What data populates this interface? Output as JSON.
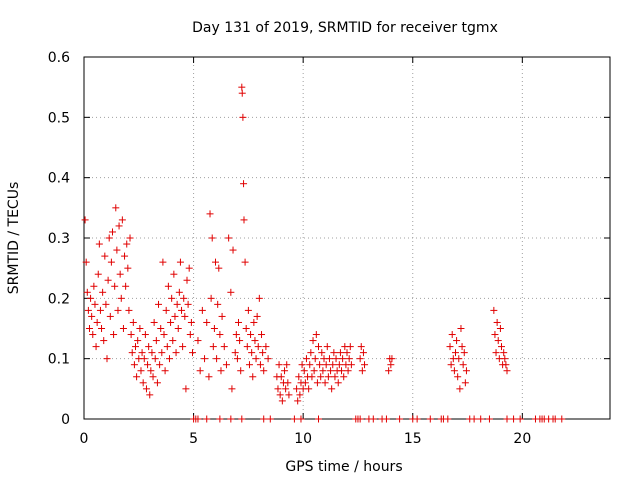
{
  "chart_data": {
    "type": "scatter",
    "title": "Day 131 of 2019, SRMTID for receiver tgmx",
    "xlabel": "GPS time / hours",
    "ylabel": "SRMTID / TECUs",
    "xlim": [
      0,
      24
    ],
    "ylim": [
      0,
      0.6
    ],
    "xticks": [
      0,
      5,
      10,
      15,
      20
    ],
    "yticks": [
      0,
      0.1,
      0.2,
      0.3,
      0.4,
      0.5,
      0.6
    ],
    "xtick_labels": [
      "0",
      "5",
      "10",
      "15",
      "20"
    ],
    "ytick_labels": [
      "0",
      "0.1",
      "0.2",
      "0.3",
      "0.4",
      "0.5",
      "0.6"
    ],
    "grid": true,
    "marker": "+",
    "marker_color": "#e00000",
    "series": [
      {
        "name": "SRMTID",
        "points": [
          [
            0.05,
            0.33
          ],
          [
            0.1,
            0.26
          ],
          [
            0.15,
            0.21
          ],
          [
            0.2,
            0.18
          ],
          [
            0.25,
            0.15
          ],
          [
            0.3,
            0.2
          ],
          [
            0.35,
            0.17
          ],
          [
            0.4,
            0.14
          ],
          [
            0.45,
            0.22
          ],
          [
            0.5,
            0.19
          ],
          [
            0.55,
            0.12
          ],
          [
            0.6,
            0.16
          ],
          [
            0.65,
            0.24
          ],
          [
            0.7,
            0.29
          ],
          [
            0.75,
            0.18
          ],
          [
            0.8,
            0.15
          ],
          [
            0.85,
            0.21
          ],
          [
            0.9,
            0.13
          ],
          [
            0.95,
            0.27
          ],
          [
            1.0,
            0.19
          ],
          [
            1.05,
            0.1
          ],
          [
            1.1,
            0.23
          ],
          [
            1.15,
            0.3
          ],
          [
            1.2,
            0.17
          ],
          [
            1.25,
            0.26
          ],
          [
            1.3,
            0.31
          ],
          [
            1.35,
            0.14
          ],
          [
            1.4,
            0.22
          ],
          [
            1.45,
            0.35
          ],
          [
            1.5,
            0.28
          ],
          [
            1.55,
            0.18
          ],
          [
            1.6,
            0.32
          ],
          [
            1.65,
            0.24
          ],
          [
            1.7,
            0.2
          ],
          [
            1.75,
            0.33
          ],
          [
            1.8,
            0.15
          ],
          [
            1.85,
            0.27
          ],
          [
            1.9,
            0.22
          ],
          [
            1.95,
            0.29
          ],
          [
            2.0,
            0.25
          ],
          [
            2.05,
            0.18
          ],
          [
            2.1,
            0.3
          ],
          [
            2.15,
            0.14
          ],
          [
            2.2,
            0.11
          ],
          [
            2.25,
            0.16
          ],
          [
            2.3,
            0.09
          ],
          [
            2.35,
            0.12
          ],
          [
            2.4,
            0.07
          ],
          [
            2.45,
            0.13
          ],
          [
            2.5,
            0.1
          ],
          [
            2.55,
            0.15
          ],
          [
            2.6,
            0.08
          ],
          [
            2.65,
            0.11
          ],
          [
            2.7,
            0.06
          ],
          [
            2.75,
            0.1
          ],
          [
            2.8,
            0.14
          ],
          [
            2.85,
            0.05
          ],
          [
            2.9,
            0.09
          ],
          [
            2.95,
            0.12
          ],
          [
            3.0,
            0.04
          ],
          [
            3.05,
            0.08
          ],
          [
            3.1,
            0.11
          ],
          [
            3.15,
            0.07
          ],
          [
            3.2,
            0.16
          ],
          [
            3.25,
            0.1
          ],
          [
            3.3,
            0.13
          ],
          [
            3.35,
            0.06
          ],
          [
            3.4,
            0.19
          ],
          [
            3.45,
            0.09
          ],
          [
            3.5,
            0.15
          ],
          [
            3.55,
            0.11
          ],
          [
            3.6,
            0.26
          ],
          [
            3.65,
            0.14
          ],
          [
            3.7,
            0.08
          ],
          [
            3.75,
            0.18
          ],
          [
            3.8,
            0.12
          ],
          [
            3.85,
            0.22
          ],
          [
            3.9,
            0.1
          ],
          [
            3.95,
            0.16
          ],
          [
            4.0,
            0.2
          ],
          [
            4.05,
            0.13
          ],
          [
            4.1,
            0.24
          ],
          [
            4.15,
            0.17
          ],
          [
            4.2,
            0.11
          ],
          [
            4.25,
            0.19
          ],
          [
            4.3,
            0.15
          ],
          [
            4.35,
            0.21
          ],
          [
            4.4,
            0.26
          ],
          [
            4.45,
            0.18
          ],
          [
            4.5,
            0.12
          ],
          [
            4.55,
            0.2
          ],
          [
            4.6,
            0.17
          ],
          [
            4.65,
            0.05
          ],
          [
            4.7,
            0.23
          ],
          [
            4.75,
            0.19
          ],
          [
            4.8,
            0.25
          ],
          [
            4.85,
            0.14
          ],
          [
            4.9,
            0.16
          ],
          [
            4.95,
            0.11
          ],
          [
            5.2,
            0.13
          ],
          [
            5.3,
            0.08
          ],
          [
            5.4,
            0.18
          ],
          [
            5.5,
            0.1
          ],
          [
            5.6,
            0.16
          ],
          [
            5.7,
            0.07
          ],
          [
            5.75,
            0.34
          ],
          [
            5.8,
            0.2
          ],
          [
            5.85,
            0.3
          ],
          [
            5.9,
            0.12
          ],
          [
            5.95,
            0.15
          ],
          [
            6.0,
            0.26
          ],
          [
            6.05,
            0.1
          ],
          [
            6.1,
            0.19
          ],
          [
            6.15,
            0.25
          ],
          [
            6.2,
            0.14
          ],
          [
            6.25,
            0.08
          ],
          [
            6.3,
            0.17
          ],
          [
            6.4,
            0.12
          ],
          [
            6.5,
            0.09
          ],
          [
            6.6,
            0.3
          ],
          [
            6.7,
            0.21
          ],
          [
            6.75,
            0.05
          ],
          [
            6.8,
            0.28
          ],
          [
            6.9,
            0.11
          ],
          [
            6.95,
            0.14
          ],
          [
            7.0,
            0.1
          ],
          [
            7.05,
            0.16
          ],
          [
            7.1,
            0.13
          ],
          [
            7.15,
            0.08
          ],
          [
            7.2,
            0.55
          ],
          [
            7.22,
            0.54
          ],
          [
            7.25,
            0.5
          ],
          [
            7.28,
            0.39
          ],
          [
            7.3,
            0.33
          ],
          [
            7.35,
            0.26
          ],
          [
            7.4,
            0.15
          ],
          [
            7.45,
            0.12
          ],
          [
            7.5,
            0.18
          ],
          [
            7.55,
            0.09
          ],
          [
            7.6,
            0.14
          ],
          [
            7.65,
            0.11
          ],
          [
            7.7,
            0.07
          ],
          [
            7.75,
            0.16
          ],
          [
            7.8,
            0.13
          ],
          [
            7.85,
            0.1
          ],
          [
            7.9,
            0.17
          ],
          [
            7.95,
            0.12
          ],
          [
            8.0,
            0.2
          ],
          [
            8.05,
            0.09
          ],
          [
            8.1,
            0.14
          ],
          [
            8.15,
            0.11
          ],
          [
            8.2,
            0.08
          ],
          [
            8.3,
            0.12
          ],
          [
            8.4,
            0.1
          ],
          [
            8.8,
            0.07
          ],
          [
            8.85,
            0.05
          ],
          [
            8.9,
            0.09
          ],
          [
            8.95,
            0.04
          ],
          [
            9.0,
            0.07
          ],
          [
            9.05,
            0.03
          ],
          [
            9.1,
            0.06
          ],
          [
            9.15,
            0.08
          ],
          [
            9.2,
            0.05
          ],
          [
            9.25,
            0.09
          ],
          [
            9.3,
            0.06
          ],
          [
            9.35,
            0.04
          ],
          [
            9.7,
            0.05
          ],
          [
            9.75,
            0.03
          ],
          [
            9.8,
            0.07
          ],
          [
            9.85,
            0.04
          ],
          [
            9.9,
            0.06
          ],
          [
            9.95,
            0.09
          ],
          [
            10.0,
            0.05
          ],
          [
            10.05,
            0.08
          ],
          [
            10.1,
            0.06
          ],
          [
            10.15,
            0.1
          ],
          [
            10.2,
            0.07
          ],
          [
            10.25,
            0.05
          ],
          [
            10.3,
            0.09
          ],
          [
            10.35,
            0.11
          ],
          [
            10.4,
            0.07
          ],
          [
            10.45,
            0.13
          ],
          [
            10.5,
            0.08
          ],
          [
            10.55,
            0.1
          ],
          [
            10.6,
            0.14
          ],
          [
            10.65,
            0.06
          ],
          [
            10.7,
            0.12
          ],
          [
            10.75,
            0.09
          ],
          [
            10.8,
            0.07
          ],
          [
            10.85,
            0.11
          ],
          [
            10.9,
            0.08
          ],
          [
            10.95,
            0.1
          ],
          [
            11.0,
            0.06
          ],
          [
            11.05,
            0.09
          ],
          [
            11.1,
            0.12
          ],
          [
            11.15,
            0.07
          ],
          [
            11.2,
            0.1
          ],
          [
            11.25,
            0.08
          ],
          [
            11.3,
            0.05
          ],
          [
            11.35,
            0.09
          ],
          [
            11.4,
            0.11
          ],
          [
            11.45,
            0.07
          ],
          [
            11.5,
            0.1
          ],
          [
            11.55,
            0.08
          ],
          [
            11.6,
            0.06
          ],
          [
            11.65,
            0.09
          ],
          [
            11.7,
            0.11
          ],
          [
            11.75,
            0.08
          ],
          [
            11.8,
            0.1
          ],
          [
            11.85,
            0.07
          ],
          [
            11.9,
            0.12
          ],
          [
            11.95,
            0.09
          ],
          [
            12.0,
            0.11
          ],
          [
            12.05,
            0.08
          ],
          [
            12.1,
            0.1
          ],
          [
            12.15,
            0.12
          ],
          [
            12.2,
            0.09
          ],
          [
            12.6,
            0.1
          ],
          [
            12.65,
            0.12
          ],
          [
            12.7,
            0.08
          ],
          [
            12.75,
            0.11
          ],
          [
            12.8,
            0.09
          ],
          [
            13.9,
            0.08
          ],
          [
            13.95,
            0.1
          ],
          [
            14.0,
            0.09
          ],
          [
            14.05,
            0.1
          ],
          [
            16.7,
            0.12
          ],
          [
            16.75,
            0.09
          ],
          [
            16.8,
            0.14
          ],
          [
            16.85,
            0.1
          ],
          [
            16.9,
            0.08
          ],
          [
            16.95,
            0.11
          ],
          [
            17.0,
            0.13
          ],
          [
            17.05,
            0.07
          ],
          [
            17.1,
            0.1
          ],
          [
            17.15,
            0.05
          ],
          [
            17.2,
            0.15
          ],
          [
            17.25,
            0.12
          ],
          [
            17.3,
            0.09
          ],
          [
            17.35,
            0.11
          ],
          [
            17.4,
            0.06
          ],
          [
            17.45,
            0.08
          ],
          [
            18.7,
            0.18
          ],
          [
            18.75,
            0.14
          ],
          [
            18.8,
            0.11
          ],
          [
            18.85,
            0.16
          ],
          [
            18.9,
            0.13
          ],
          [
            18.95,
            0.1
          ],
          [
            19.0,
            0.15
          ],
          [
            19.05,
            0.12
          ],
          [
            19.1,
            0.09
          ],
          [
            19.15,
            0.11
          ],
          [
            19.2,
            0.1
          ],
          [
            19.25,
            0.09
          ],
          [
            19.3,
            0.08
          ],
          [
            5.0,
            0.0
          ],
          [
            5.1,
            0.0
          ],
          [
            5.2,
            0.0
          ],
          [
            5.6,
            0.0
          ],
          [
            6.2,
            0.0
          ],
          [
            6.7,
            0.0
          ],
          [
            7.2,
            0.0
          ],
          [
            8.2,
            0.0
          ],
          [
            8.5,
            0.0
          ],
          [
            9.6,
            0.0
          ],
          [
            9.9,
            0.0
          ],
          [
            10.7,
            0.0
          ],
          [
            12.4,
            0.0
          ],
          [
            12.5,
            0.0
          ],
          [
            12.6,
            0.0
          ],
          [
            13.0,
            0.0
          ],
          [
            13.2,
            0.0
          ],
          [
            13.6,
            0.0
          ],
          [
            13.8,
            0.0
          ],
          [
            14.4,
            0.0
          ],
          [
            15.0,
            0.0
          ],
          [
            15.2,
            0.0
          ],
          [
            15.8,
            0.0
          ],
          [
            16.3,
            0.0
          ],
          [
            16.4,
            0.0
          ],
          [
            16.6,
            0.0
          ],
          [
            17.6,
            0.0
          ],
          [
            17.8,
            0.0
          ],
          [
            18.1,
            0.0
          ],
          [
            18.5,
            0.0
          ],
          [
            19.3,
            0.0
          ],
          [
            19.6,
            0.0
          ],
          [
            19.9,
            0.0
          ],
          [
            20.6,
            0.0
          ],
          [
            20.8,
            0.0
          ],
          [
            20.9,
            0.0
          ],
          [
            21.0,
            0.0
          ],
          [
            21.2,
            0.0
          ],
          [
            21.4,
            0.0
          ],
          [
            21.5,
            0.0
          ],
          [
            21.8,
            0.0
          ]
        ]
      }
    ]
  }
}
